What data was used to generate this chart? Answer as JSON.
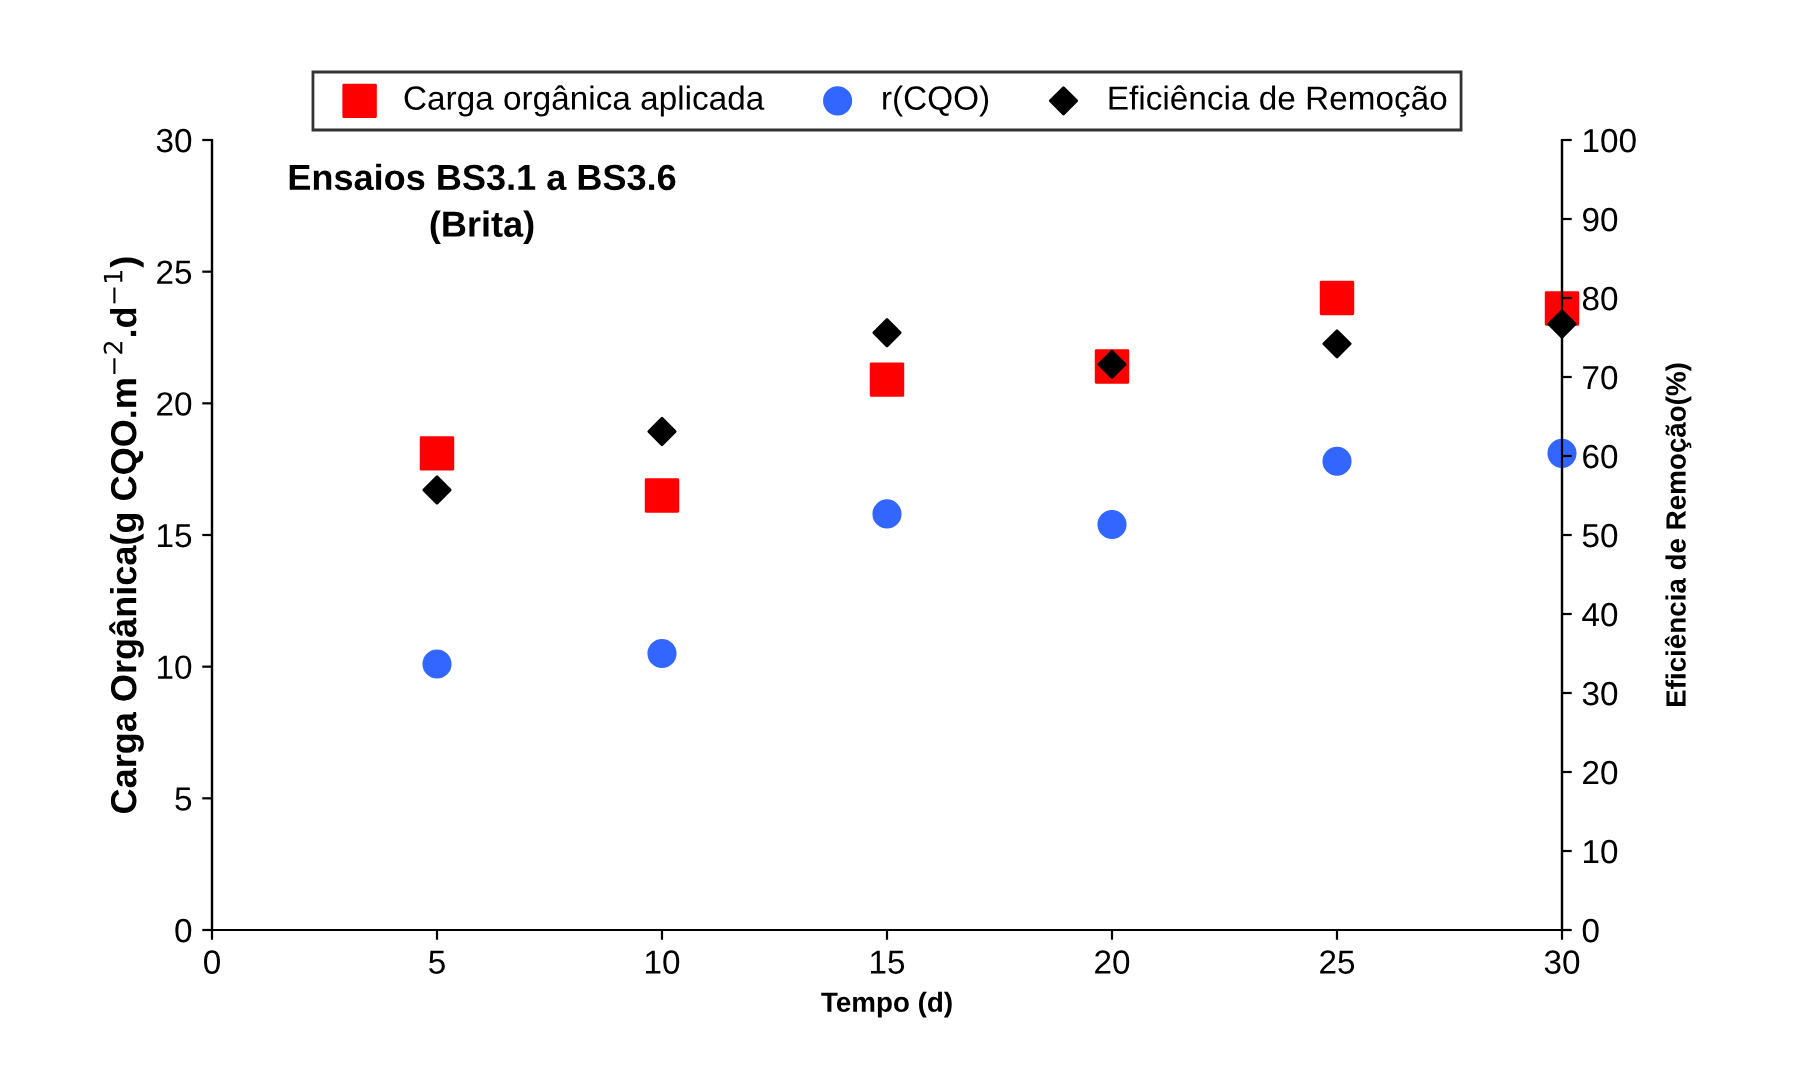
{
  "chart_data": {
    "type": "scatter",
    "title": "Ensaios BS3.1 a BS3.6\n(Brita)",
    "xlabel": "Tempo (d)",
    "ylabel": "Carga Orgânica(g CQO.m$^{−2}$.d$^{−1}$)",
    "y2label": "Eficiência de Remoção(%)",
    "x": [
      5,
      10,
      15,
      20,
      25,
      30
    ],
    "series": [
      {
        "name": "Carga orgânica aplicada",
        "color": "#ff0000",
        "marker": "square",
        "values": [
          18.1,
          16.5,
          20.9,
          21.4,
          24.0,
          23.6
        ]
      },
      {
        "name": "r(CQO)",
        "color": "#3366ff",
        "marker": "circle",
        "values": [
          10.1,
          10.5,
          15.8,
          15.4,
          17.8,
          18.1
        ]
      },
      {
        "name": "Eficiência de Remoção",
        "color": "#000000",
        "marker": "diamond",
        "axis": "y2",
        "values": [
          55.7,
          63.1,
          75.6,
          71.6,
          74.2,
          76.7
        ]
      }
    ],
    "xlim": [
      0,
      30
    ],
    "xticks": [
      0,
      5,
      10,
      15,
      20,
      25,
      30
    ],
    "ylim": [
      0,
      30
    ],
    "yticks": [
      0,
      5,
      10,
      15,
      20,
      25,
      30
    ],
    "y2lim": [
      0,
      100
    ],
    "y2ticks": [
      0,
      10,
      20,
      30,
      40,
      50,
      60,
      70,
      80,
      90,
      100
    ],
    "grid": false,
    "legend": "top"
  }
}
